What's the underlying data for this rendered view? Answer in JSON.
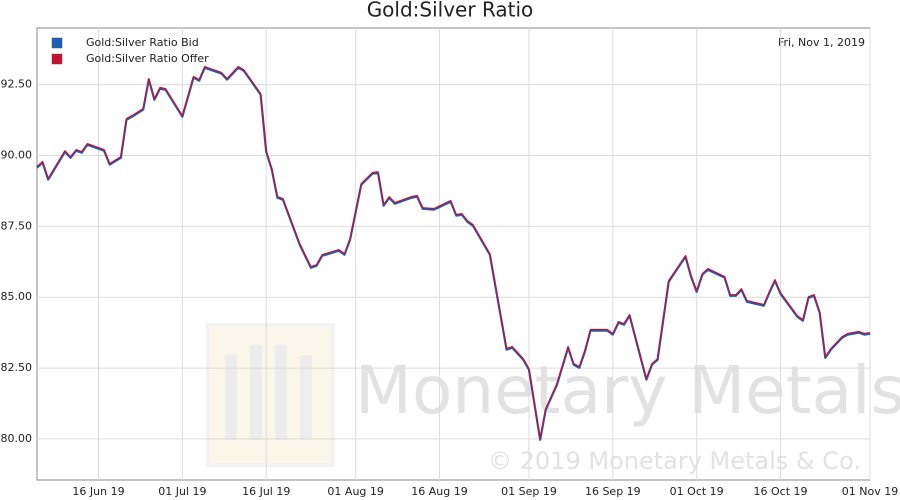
{
  "chart_data": {
    "type": "line",
    "title": "Gold:Silver Ratio",
    "date_label": "Fri, Nov 1, 2019",
    "watermark": "Monetary Metals",
    "copyright": "© 2019 Monetary Metals & Co.",
    "x": [
      "2019-06-05",
      "2019-06-06",
      "2019-06-07",
      "2019-06-10",
      "2019-06-11",
      "2019-06-12",
      "2019-06-13",
      "2019-06-14",
      "2019-06-17",
      "2019-06-18",
      "2019-06-20",
      "2019-06-21",
      "2019-06-22",
      "2019-06-24",
      "2019-06-25",
      "2019-06-26",
      "2019-06-27",
      "2019-06-28",
      "2019-07-01",
      "2019-07-03",
      "2019-07-04",
      "2019-07-05",
      "2019-07-06",
      "2019-07-08",
      "2019-07-09",
      "2019-07-11",
      "2019-07-12",
      "2019-07-15",
      "2019-07-16",
      "2019-07-17",
      "2019-07-18",
      "2019-07-19",
      "2019-07-22",
      "2019-07-24",
      "2019-07-25",
      "2019-07-26",
      "2019-07-29",
      "2019-07-30",
      "2019-07-31",
      "2019-08-02",
      "2019-08-04",
      "2019-08-05",
      "2019-08-06",
      "2019-08-07",
      "2019-08-08",
      "2019-08-11",
      "2019-08-12",
      "2019-08-13",
      "2019-08-15",
      "2019-08-18",
      "2019-08-19",
      "2019-08-20",
      "2019-08-21",
      "2019-08-22",
      "2019-08-25",
      "2019-08-28",
      "2019-08-29",
      "2019-08-31",
      "2019-09-01",
      "2019-09-03",
      "2019-09-04",
      "2019-09-06",
      "2019-09-08",
      "2019-09-09",
      "2019-09-10",
      "2019-09-11",
      "2019-09-12",
      "2019-09-15",
      "2019-09-16",
      "2019-09-17",
      "2019-09-18",
      "2019-09-19",
      "2019-09-22",
      "2019-09-23",
      "2019-09-24",
      "2019-09-26",
      "2019-09-29",
      "2019-09-30",
      "2019-10-01",
      "2019-10-02",
      "2019-10-03",
      "2019-10-06",
      "2019-10-07",
      "2019-10-08",
      "2019-10-09",
      "2019-10-10",
      "2019-10-13",
      "2019-10-14",
      "2019-10-15",
      "2019-10-16",
      "2019-10-19",
      "2019-10-20",
      "2019-10-21",
      "2019-10-22",
      "2019-10-23",
      "2019-10-24",
      "2019-10-25",
      "2019-10-27",
      "2019-10-28",
      "2019-10-30",
      "2019-10-31",
      "2019-11-01"
    ],
    "series": [
      {
        "name": "Gold:Silver Ratio Bid",
        "color": "#1a5fb4",
        "values": [
          89.57,
          89.75,
          89.15,
          90.13,
          89.92,
          90.17,
          90.1,
          90.38,
          90.17,
          89.68,
          89.92,
          91.26,
          91.37,
          91.62,
          92.68,
          91.97,
          92.36,
          92.32,
          91.37,
          92.75,
          92.64,
          93.1,
          93.03,
          92.89,
          92.68,
          93.1,
          92.99,
          92.15,
          90.13,
          89.5,
          88.51,
          88.44,
          86.85,
          86.04,
          86.11,
          86.46,
          86.64,
          86.5,
          87.03,
          88.97,
          89.36,
          89.39,
          88.23,
          88.51,
          88.3,
          88.51,
          88.55,
          88.12,
          88.09,
          88.37,
          87.88,
          87.91,
          87.66,
          87.52,
          86.5,
          83.15,
          83.22,
          82.79,
          82.44,
          79.97,
          81.03,
          81.91,
          83.22,
          82.62,
          82.51,
          83.08,
          83.82,
          83.82,
          83.68,
          84.1,
          84.03,
          84.35,
          82.09,
          82.62,
          82.79,
          85.55,
          86.43,
          85.72,
          85.19,
          85.79,
          85.97,
          85.69,
          85.05,
          85.05,
          85.26,
          84.84,
          84.7,
          85.16,
          85.58,
          85.12,
          84.31,
          84.17,
          84.98,
          85.05,
          84.45,
          82.86,
          83.15,
          83.57,
          83.68,
          83.75,
          83.68,
          83.71
        ]
      },
      {
        "name": "Gold:Silver Ratio Offer",
        "color": "#c8102e",
        "values": [
          89.61,
          89.79,
          89.19,
          90.17,
          89.96,
          90.21,
          90.14,
          90.42,
          90.21,
          89.72,
          89.96,
          91.3,
          91.41,
          91.66,
          92.72,
          92.01,
          92.4,
          92.36,
          91.41,
          92.79,
          92.68,
          93.14,
          93.07,
          92.93,
          92.72,
          93.14,
          93.03,
          92.19,
          90.17,
          89.54,
          88.55,
          88.48,
          86.89,
          86.08,
          86.15,
          86.5,
          86.68,
          86.54,
          87.07,
          89.01,
          89.4,
          89.43,
          88.27,
          88.55,
          88.34,
          88.55,
          88.59,
          88.16,
          88.13,
          88.41,
          87.92,
          87.95,
          87.7,
          87.56,
          86.54,
          83.19,
          83.26,
          82.83,
          82.48,
          80.01,
          81.07,
          81.95,
          83.26,
          82.66,
          82.55,
          83.12,
          83.86,
          83.86,
          83.72,
          84.14,
          84.07,
          84.39,
          82.13,
          82.66,
          82.83,
          85.59,
          86.47,
          85.76,
          85.23,
          85.83,
          86.01,
          85.73,
          85.09,
          85.09,
          85.3,
          84.88,
          84.74,
          85.2,
          85.62,
          85.16,
          84.35,
          84.21,
          85.02,
          85.09,
          84.49,
          82.9,
          83.19,
          83.61,
          83.72,
          83.79,
          83.72,
          83.75
        ]
      }
    ],
    "xlim": [
      "2019-06-05",
      "2019-11-01"
    ],
    "xticks": [
      {
        "value": "2019-06-16",
        "label": "16 Jun 19"
      },
      {
        "value": "2019-07-01",
        "label": "01 Jul 19"
      },
      {
        "value": "2019-07-16",
        "label": "16 Jul 19"
      },
      {
        "value": "2019-08-01",
        "label": "01 Aug 19"
      },
      {
        "value": "2019-08-16",
        "label": "16 Aug 19"
      },
      {
        "value": "2019-09-01",
        "label": "01 Sep 19"
      },
      {
        "value": "2019-09-16",
        "label": "16 Sep 19"
      },
      {
        "value": "2019-10-01",
        "label": "01 Oct 19"
      },
      {
        "value": "2019-10-16",
        "label": "16 Oct 19"
      },
      {
        "value": "2019-11-01",
        "label": "01 Nov 19"
      }
    ],
    "ylim": [
      78.55,
      94.5
    ],
    "yticks": [
      {
        "value": 80,
        "label": "80.00"
      },
      {
        "value": 82.5,
        "label": "82.50"
      },
      {
        "value": 85,
        "label": "85.00"
      },
      {
        "value": 87.5,
        "label": "87.50"
      },
      {
        "value": 90,
        "label": "90.00"
      },
      {
        "value": 92.5,
        "label": "92.50"
      }
    ],
    "grid": true,
    "legend": "top-left"
  }
}
